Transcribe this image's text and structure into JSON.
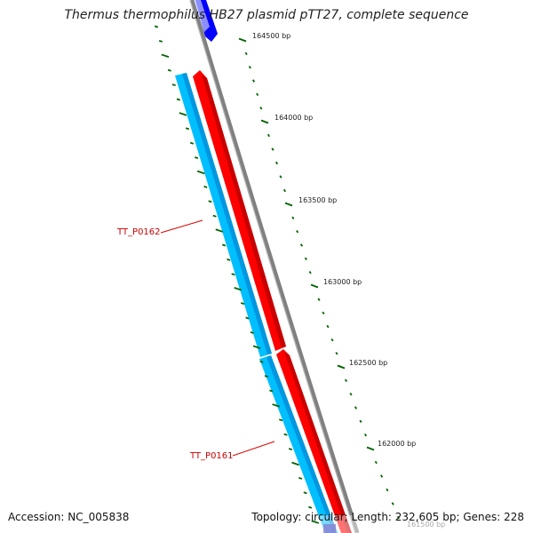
{
  "title": "Thermus thermophilus HB27 plasmid pTT27, complete sequence",
  "accession": "Accession: NC_005838",
  "summary": "Topology: circular; Length: 232,605 bp; Genes: 228",
  "colors": {
    "backbone": "#808080",
    "forward_gene": "#ff0000",
    "reverse_gene": "#00bfff",
    "other_gene": "#0000ff",
    "tick": "#006400",
    "gene_label": "#dd0000"
  },
  "scale_ticks": [
    {
      "label": "164500 bp"
    },
    {
      "label": "164000 bp"
    },
    {
      "label": "163500 bp"
    },
    {
      "label": "163000 bp"
    },
    {
      "label": "162500 bp"
    },
    {
      "label": "162000 bp"
    }
  ],
  "gene_labels": [
    {
      "label": "TT_P0162"
    },
    {
      "label": "TT_P0161"
    }
  ],
  "partial_tick_label": "161500 bp"
}
